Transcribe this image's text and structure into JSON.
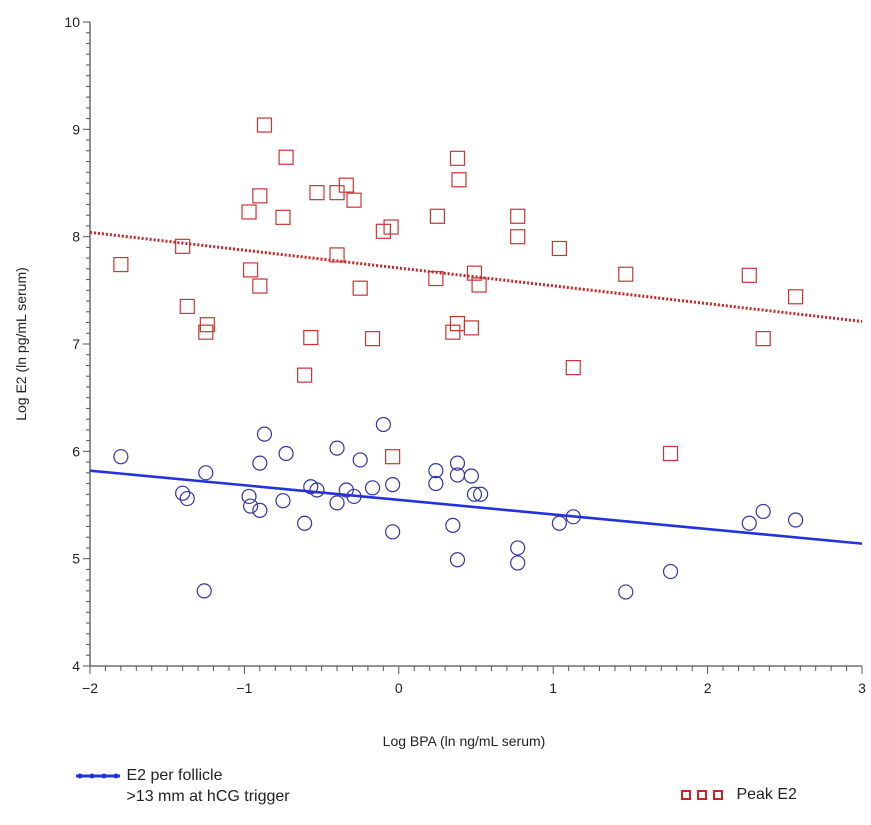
{
  "chart_data": {
    "type": "scatter",
    "title": "",
    "xlabel": "Log BPA (ln ng/mL serum)",
    "ylabel": "Log E2 (ln pg/mL serum)",
    "xlim": [
      -2,
      3
    ],
    "ylim": [
      4,
      10
    ],
    "xticks": [
      -2,
      -1,
      0,
      1,
      2,
      3
    ],
    "yticks": [
      4,
      5,
      6,
      7,
      8,
      9,
      10
    ],
    "xtick_labels": [
      "−2",
      "−1",
      "0",
      "1",
      "2",
      "3"
    ],
    "ytick_labels": [
      "4",
      "5",
      "6",
      "7",
      "8",
      "9",
      "10"
    ],
    "grid": false,
    "series": [
      {
        "name": "Peak E2",
        "marker": "square",
        "color": "#cc3333",
        "fit_line": {
          "style": "dotted",
          "color": "#cc2222",
          "x": [
            -2,
            3
          ],
          "y": [
            8.04,
            7.21
          ]
        },
        "points": [
          [
            -1.8,
            7.74
          ],
          [
            -1.4,
            7.91
          ],
          [
            -1.37,
            7.35
          ],
          [
            -1.25,
            7.11
          ],
          [
            -1.24,
            7.18
          ],
          [
            -0.97,
            8.23
          ],
          [
            -0.96,
            7.69
          ],
          [
            -0.9,
            8.38
          ],
          [
            -0.9,
            7.54
          ],
          [
            -0.87,
            9.04
          ],
          [
            -0.75,
            8.18
          ],
          [
            -0.73,
            8.74
          ],
          [
            -0.57,
            7.06
          ],
          [
            -0.53,
            8.41
          ],
          [
            -0.61,
            6.71
          ],
          [
            -0.4,
            8.41
          ],
          [
            -0.4,
            7.83
          ],
          [
            -0.34,
            8.48
          ],
          [
            -0.29,
            8.34
          ],
          [
            -0.25,
            7.52
          ],
          [
            -0.17,
            7.05
          ],
          [
            -0.1,
            8.05
          ],
          [
            -0.05,
            8.09
          ],
          [
            -0.04,
            5.95
          ],
          [
            0.25,
            8.19
          ],
          [
            0.24,
            7.61
          ],
          [
            0.35,
            7.11
          ],
          [
            0.38,
            7.19
          ],
          [
            0.38,
            8.73
          ],
          [
            0.39,
            8.53
          ],
          [
            0.47,
            7.15
          ],
          [
            0.49,
            7.66
          ],
          [
            0.52,
            7.55
          ],
          [
            0.77,
            8.19
          ],
          [
            0.77,
            8.0
          ],
          [
            1.04,
            7.89
          ],
          [
            1.13,
            6.78
          ],
          [
            1.47,
            7.65
          ],
          [
            1.76,
            5.98
          ],
          [
            2.27,
            7.64
          ],
          [
            2.36,
            7.05
          ],
          [
            2.57,
            7.44
          ]
        ]
      },
      {
        "name": "E2 per follicle >13 mm at hCG trigger",
        "marker": "circle",
        "color": "#3333aa",
        "fit_line": {
          "style": "solid",
          "color": "#2233dd",
          "x": [
            -2,
            3
          ],
          "y": [
            5.82,
            5.14
          ]
        },
        "points": [
          [
            -1.8,
            5.95
          ],
          [
            -1.4,
            5.61
          ],
          [
            -1.37,
            5.56
          ],
          [
            -1.25,
            5.8
          ],
          [
            -1.26,
            4.7
          ],
          [
            -0.97,
            5.58
          ],
          [
            -0.96,
            5.49
          ],
          [
            -0.9,
            5.89
          ],
          [
            -0.9,
            5.45
          ],
          [
            -0.87,
            6.16
          ],
          [
            -0.75,
            5.54
          ],
          [
            -0.73,
            5.98
          ],
          [
            -0.61,
            5.33
          ],
          [
            -0.57,
            5.67
          ],
          [
            -0.53,
            5.64
          ],
          [
            -0.4,
            6.03
          ],
          [
            -0.4,
            5.52
          ],
          [
            -0.34,
            5.64
          ],
          [
            -0.29,
            5.58
          ],
          [
            -0.25,
            5.92
          ],
          [
            -0.17,
            5.66
          ],
          [
            -0.1,
            6.25
          ],
          [
            -0.04,
            5.69
          ],
          [
            -0.04,
            5.25
          ],
          [
            0.24,
            5.82
          ],
          [
            0.24,
            5.7
          ],
          [
            0.35,
            5.31
          ],
          [
            0.38,
            5.89
          ],
          [
            0.38,
            5.78
          ],
          [
            0.38,
            4.99
          ],
          [
            0.47,
            5.77
          ],
          [
            0.49,
            5.6
          ],
          [
            0.53,
            5.6
          ],
          [
            0.77,
            5.1
          ],
          [
            0.77,
            4.96
          ],
          [
            1.04,
            5.33
          ],
          [
            1.13,
            5.39
          ],
          [
            1.47,
            4.69
          ],
          [
            1.76,
            4.88
          ],
          [
            2.27,
            5.33
          ],
          [
            2.36,
            5.44
          ],
          [
            2.57,
            5.36
          ]
        ]
      }
    ],
    "legend": [
      {
        "lines": [
          "E2 per follicle",
          ">13 mm at hCG trigger"
        ],
        "color": "#2233dd",
        "marker": "circle"
      },
      {
        "lines": [
          "Peak E2"
        ],
        "color": "#cc2222",
        "marker": "square"
      }
    ]
  }
}
